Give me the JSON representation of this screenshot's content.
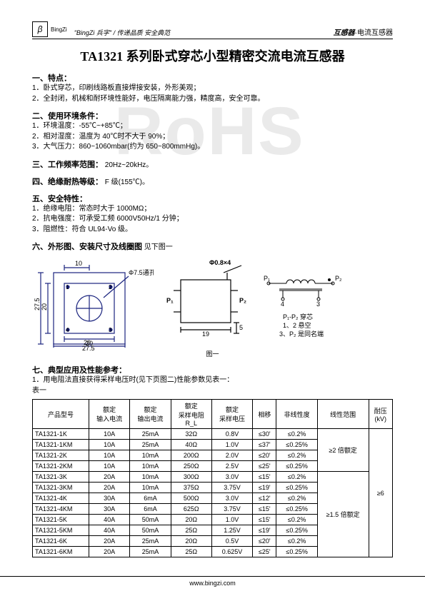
{
  "header": {
    "logo_name": "BingZi",
    "slogan": "\"BingZi 兵字\" / 传递品质  安全典范",
    "right_bold": "互感器",
    "right_plain": "·电流互感器"
  },
  "title": "TA1321 系列卧式穿芯小型精密交流电流互感器",
  "sections": {
    "s1": {
      "heading": "一、特点：",
      "items": [
        "1．卧式穿芯，印刷线路板直接焊接安装，外形美观；",
        "2．全封闭，机械和耐环境性能好，电压隔离能力强，精度高，安全可靠。"
      ]
    },
    "s2": {
      "heading": "二、使用环境条件：",
      "items": [
        "1．环境温度：-55℃~+85℃；",
        "2．相对湿度：温度为 40℃时不大于 90%；",
        "3．大气压力：860~1060mbar(约为 650~800mmHg)。"
      ]
    },
    "s3": {
      "heading": "三、工作频率范围：",
      "text": "20Hz~20kHz。"
    },
    "s4": {
      "heading": "四、绝缘耐热等级：",
      "text": "F 级(155℃)。"
    },
    "s5": {
      "heading": "五、安全特性：",
      "items": [
        "1．绝缘电阻：常态时大于 1000MΩ；",
        "2．抗电强度：可承受工频 6000V50Hz/1 分钟；",
        "3．阻燃性：符合 UL94-Vo 级。"
      ]
    },
    "s6": {
      "heading": "六、外形图、安装尺寸及线圈图",
      "suffix": "见下图一"
    },
    "s7": {
      "heading": "七、典型应用及性能参考：",
      "items": [
        "1．用电阻法直接获得采样电压时(见下页图二)性能参数见表一："
      ],
      "table_label": "表一"
    }
  },
  "diagram": {
    "hole_label": "Φ7.5通孔",
    "pin_label": "Φ0.8×4",
    "dims": {
      "w_outer": "27.5",
      "w_inner": "20",
      "h_outer": "27.5",
      "h_inner": "20",
      "top_off": "10",
      "side_w": "19",
      "side_h": "5"
    },
    "pins": [
      "1",
      "2",
      "3",
      "4"
    ],
    "p1": "P₁",
    "p2": "P₂",
    "note1": "P₁-P₂ 穿芯",
    "note2": "1、2 悬空",
    "note3": "3、P₂ 是同名端",
    "circuit_pins": [
      "4",
      "3"
    ],
    "caption": "图一"
  },
  "table": {
    "columns": [
      "产品型号",
      "额定\n输入电流",
      "额定\n输出电流",
      "额定\n采样电阻\nR_L",
      "额定\n采样电压",
      "相移",
      "非线性度",
      "线性范围",
      "耐压\n(kV)"
    ],
    "rows": [
      [
        "TA1321-1K",
        "10A",
        "25mA",
        "32Ω",
        "0.8V",
        "≤30'",
        "≤0.2%",
        "",
        ""
      ],
      [
        "TA1321-1KM",
        "10A",
        "25mA",
        "40Ω",
        "1.0V",
        "≤37'",
        "≤0.25%",
        "",
        ""
      ],
      [
        "TA1321-2K",
        "10A",
        "10mA",
        "200Ω",
        "2.0V",
        "≤20'",
        "≤0.2%",
        "≥2 倍额定",
        ""
      ],
      [
        "TA1321-2KM",
        "10A",
        "10mA",
        "250Ω",
        "2.5V",
        "≤25'",
        "≤0.25%",
        "",
        ""
      ],
      [
        "TA1321-3K",
        "20A",
        "10mA",
        "300Ω",
        "3.0V",
        "≤15'",
        "≤0.2%",
        "",
        "≥6"
      ],
      [
        "TA1321-3KM",
        "20A",
        "10mA",
        "375Ω",
        "3.75V",
        "≤19'",
        "≤0.25%",
        "",
        ""
      ],
      [
        "TA1321-4K",
        "30A",
        "6mA",
        "500Ω",
        "3.0V",
        "≤12'",
        "≤0.2%",
        "",
        ""
      ],
      [
        "TA1321-4KM",
        "30A",
        "6mA",
        "625Ω",
        "3.75V",
        "≤15'",
        "≤0.25%",
        "",
        ""
      ],
      [
        "TA1321-5K",
        "40A",
        "50mA",
        "20Ω",
        "1.0V",
        "≤15'",
        "≤0.2%",
        "≥1.5 倍额定",
        ""
      ],
      [
        "TA1321-5KM",
        "40A",
        "50mA",
        "25Ω",
        "1.25V",
        "≤19'",
        "≤0.25%",
        "",
        ""
      ],
      [
        "TA1321-6K",
        "20A",
        "25mA",
        "20Ω",
        "0.5V",
        "≤20'",
        "≤0.2%",
        "",
        ""
      ],
      [
        "TA1321-6KM",
        "20A",
        "25mA",
        "25Ω",
        "0.625V",
        "≤25'",
        "≤0.25%",
        "",
        ""
      ]
    ],
    "col8_merge": [
      {
        "start": 0,
        "span": 4,
        "text": "≥2 倍额定"
      },
      {
        "start": 4,
        "span": 8,
        "text": "≥1.5 倍额定"
      }
    ],
    "col9_merge": {
      "start": 0,
      "span": 12,
      "text": "≥6"
    }
  },
  "footer": "www.bingzi.com",
  "colors": {
    "line": "#000000",
    "diagram_stroke": "#1a237e",
    "watermark": "#eaeaea"
  }
}
